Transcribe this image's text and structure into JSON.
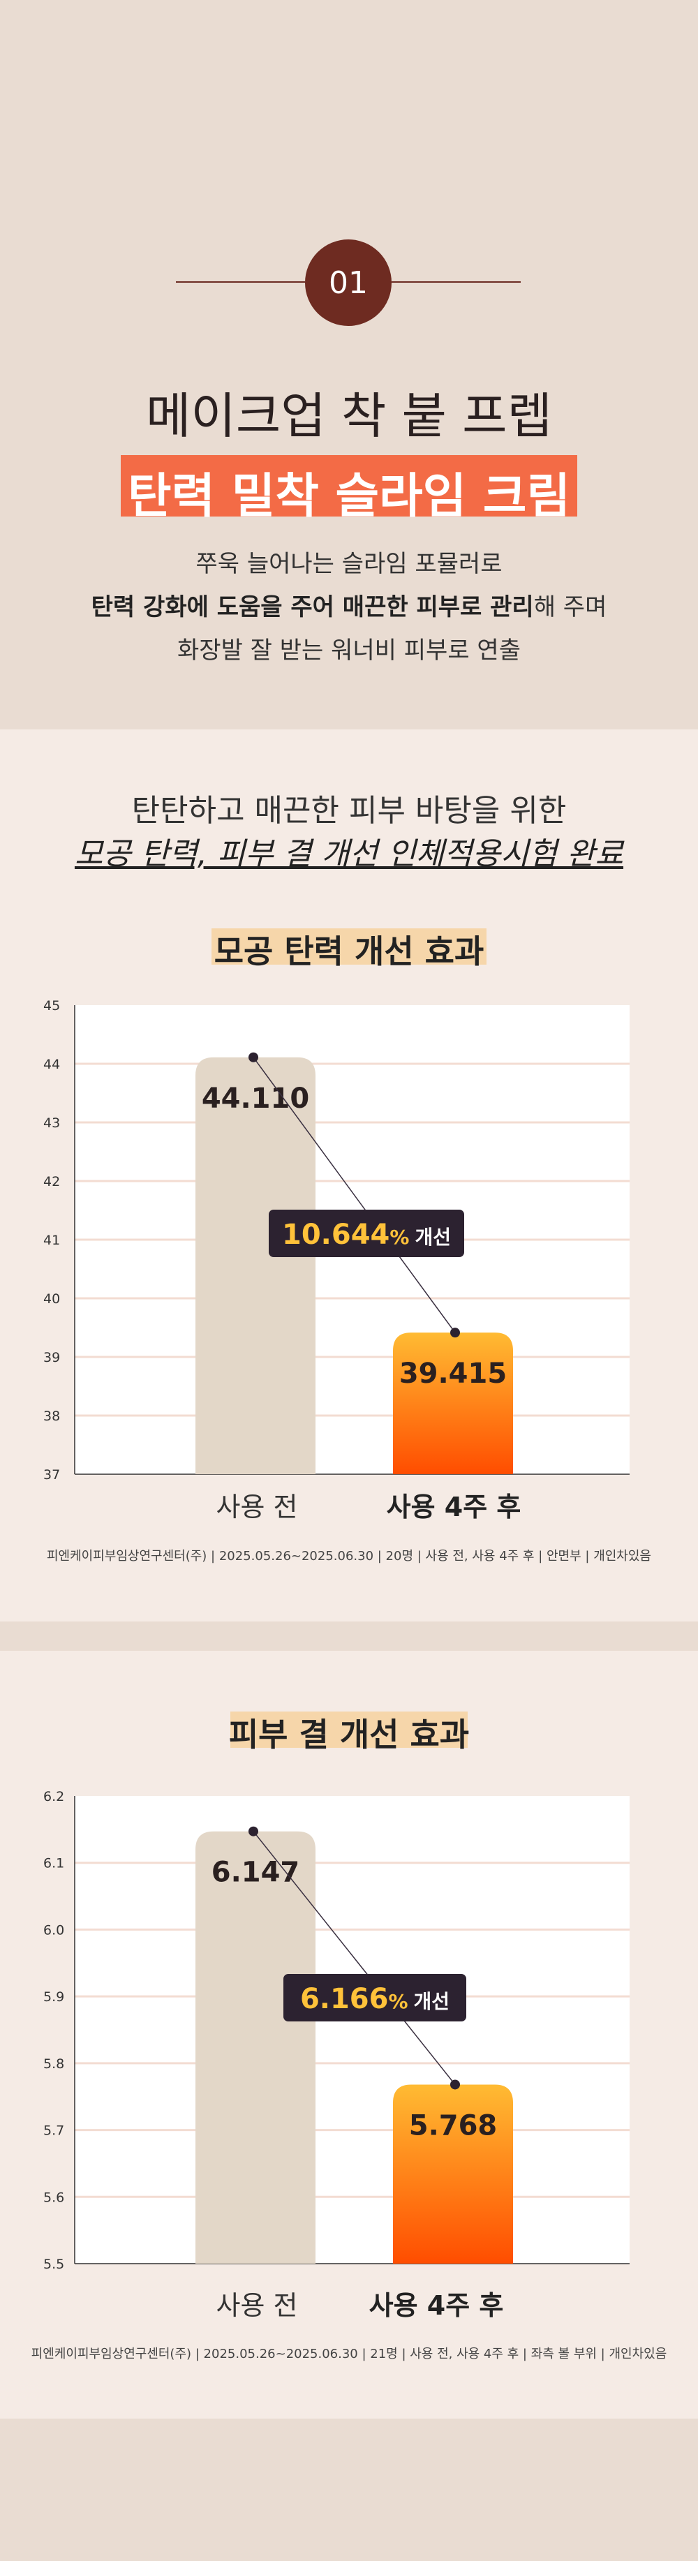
{
  "section": {
    "number": "01",
    "headline": "메이크업 착 붙 프렙",
    "highlight": "탄력 밀착 슬라임 크림",
    "desc_line1": "쭈욱 늘어나는 슬라임 포뮬러로",
    "desc_line2_bold": "탄력 강화에 도움을 주어 매끈한 피부로 관리",
    "desc_line2_rest": "해 주며",
    "desc_line3": "화장발 잘 받는 워너비 피부로 연출"
  },
  "intro": {
    "line1": "탄탄하고 매끈한 피부 바탕을 위한",
    "line2": "모공 탄력, 피부 결 개선 인체적용시험 완료"
  },
  "colors": {
    "accent": "#f36b46",
    "badge": "#6e2b21",
    "bar_before": "#e3d7c8",
    "bar_after_top": "#ffbb33",
    "bar_after_bottom": "#ff4d00",
    "callout_bg": "#2c2230",
    "callout_number": "#ffc23a",
    "title_highlight": "#f6d6aa"
  },
  "chart_data": [
    {
      "type": "bar",
      "title": "모공 탄력 개선 효과",
      "categories": [
        "사용 전",
        "사용 4주 후"
      ],
      "values": [
        44.11,
        39.415
      ],
      "value_labels": [
        "44.110",
        "39.415"
      ],
      "ylim": [
        37,
        45
      ],
      "yticks": [
        "37",
        "38",
        "39",
        "40",
        "41",
        "42",
        "43",
        "44",
        "45"
      ],
      "grid": true,
      "callout_value": "10.644",
      "callout_unit": "%",
      "callout_text": "개선",
      "source": "피엔케이피부임상연구센터(주) | 2025.05.26~2025.06.30 | 20명 | 사용 전, 사용 4주 후 | 안면부 | 개인차있음"
    },
    {
      "type": "bar",
      "title": "피부 결 개선 효과",
      "categories": [
        "사용 전",
        "사용 4주 후"
      ],
      "values": [
        6.147,
        5.768
      ],
      "value_labels": [
        "6.147",
        "5.768"
      ],
      "ylim": [
        5.5,
        6.2
      ],
      "yticks": [
        "5.5",
        "5.6",
        "5.7",
        "5.8",
        "5.9",
        "6.0",
        "6.1",
        "6.2"
      ],
      "grid": true,
      "callout_value": "6.166",
      "callout_unit": "%",
      "callout_text": "개선",
      "source": "피엔케이피부임상연구센터(주) | 2025.05.26~2025.06.30 | 21명 | 사용 전, 사용 4주 후 | 좌측 볼 부위 | 개인차있음"
    }
  ]
}
